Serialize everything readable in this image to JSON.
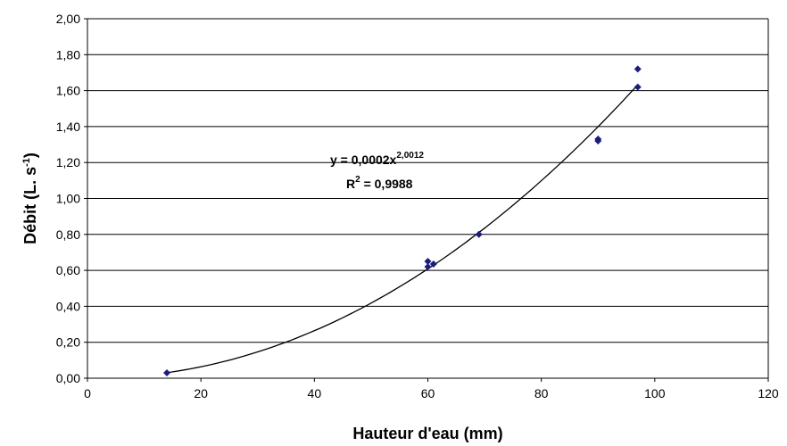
{
  "chart_data": {
    "type": "scatter",
    "xlabel": "Hauteur d'eau (mm)",
    "ylabel": {
      "text": "Débit (L. s",
      "sup": "-1",
      "rest": ")"
    },
    "equation": {
      "text": "y = 0,0002x",
      "sup": "2,0012"
    },
    "r2": {
      "text": "R",
      "sup": "2",
      "rest": " = 0,9988"
    },
    "series": [
      {
        "name": "Débit",
        "color": "#1c1c7c",
        "x": [
          14,
          60,
          60,
          61,
          69,
          90,
          90,
          97,
          97
        ],
        "values": [
          0.03,
          0.65,
          0.62,
          0.635,
          0.8,
          1.33,
          1.32,
          1.72,
          1.62
        ]
      }
    ],
    "trendline": "power",
    "xlim": [
      0,
      120
    ],
    "xticks": [
      0,
      20,
      40,
      60,
      80,
      100,
      120
    ],
    "ylim": [
      0,
      2
    ],
    "yticks": [
      {
        "value": 0,
        "label": "0,00"
      },
      {
        "value": 0.2,
        "label": "0,20"
      },
      {
        "value": 0.4,
        "label": "0,40"
      },
      {
        "value": 0.6,
        "label": "0,60"
      },
      {
        "value": 0.8,
        "label": "0,80"
      },
      {
        "value": 1.0,
        "label": "1,00"
      },
      {
        "value": 1.2,
        "label": "1,20"
      },
      {
        "value": 1.4,
        "label": "1,40"
      },
      {
        "value": 1.6,
        "label": "1,60"
      },
      {
        "value": 1.8,
        "label": "1,80"
      },
      {
        "value": 2.0,
        "label": "2,00"
      }
    ],
    "grid": true
  }
}
